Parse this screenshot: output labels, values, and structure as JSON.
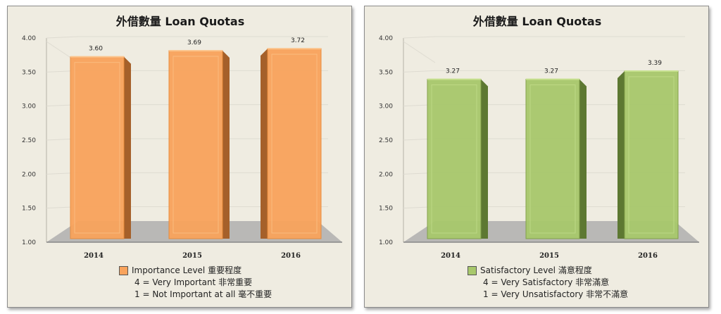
{
  "chart_data": [
    {
      "type": "bar",
      "title": "外借數量  Loan Quotas",
      "categories": [
        "2014",
        "2015",
        "2016"
      ],
      "values": [
        3.6,
        3.69,
        3.72
      ],
      "value_labels": [
        "3.60",
        "3.69",
        "3.72"
      ],
      "ylim": [
        1.0,
        4.0
      ],
      "yticks": [
        "1.00",
        "1.50",
        "2.00",
        "2.50",
        "3.00",
        "3.50",
        "4.00"
      ],
      "grid": true,
      "legend_placement": "bottom",
      "legend": {
        "label": "Importance Level 重要程度",
        "line2": "4 = Very Important 非常重要",
        "line3": "1 = Not  Important at all 毫不重要"
      },
      "colors": {
        "front": "#f9a35c",
        "side": "#a5602a",
        "top": "#fbc48c",
        "edge": "#e88938"
      }
    },
    {
      "type": "bar",
      "title": "外借數量  Loan Quotas",
      "categories": [
        "2014",
        "2015",
        "2016"
      ],
      "values": [
        3.27,
        3.27,
        3.39
      ],
      "value_labels": [
        "3.27",
        "3.27",
        "3.39"
      ],
      "ylim": [
        1.0,
        4.0
      ],
      "yticks": [
        "1.00",
        "1.50",
        "2.00",
        "2.50",
        "3.00",
        "3.50",
        "4.00"
      ],
      "grid": true,
      "legend_placement": "bottom",
      "legend": {
        "label": "Satisfactory Level 滿意程度",
        "line2": "4 = Very Satisfactory 非常滿意",
        "line3": "1 = Very Unsatisfactory 非常不滿意"
      },
      "colors": {
        "front": "#a8c86c",
        "side": "#5d7832",
        "top": "#c6e08e",
        "edge": "#7f9e45"
      }
    }
  ]
}
